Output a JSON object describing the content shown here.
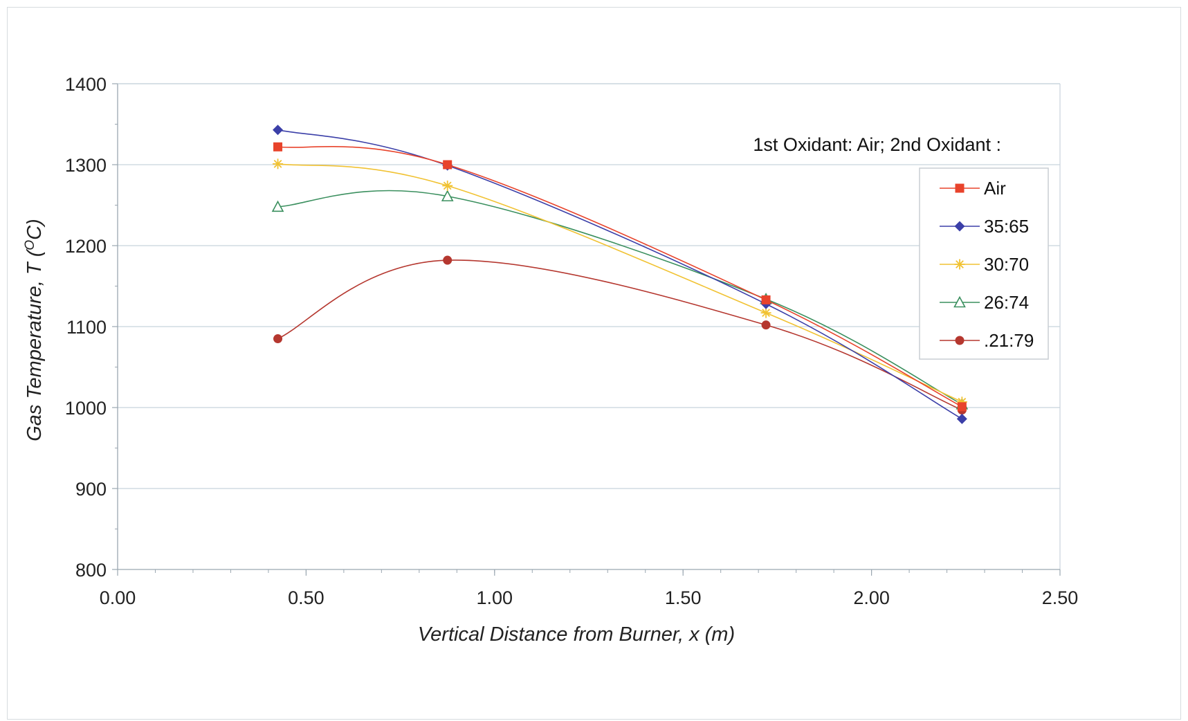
{
  "chart_data": {
    "type": "line",
    "xlabel": "Vertical Distance from Burner, x (m)",
    "ylabel_prefix": "Gas Temperature, ",
    "ylabel_var": "T",
    "ylabel_unit_open": " (",
    "ylabel_sup": "O",
    "ylabel_unit_close": "C)",
    "annotation": "1st Oxidant: Air;  2nd Oxidant :",
    "xlim": [
      0,
      2.5
    ],
    "ylim": [
      800,
      1400
    ],
    "x_ticks": [
      "0.00",
      "0.50",
      "1.00",
      "1.50",
      "2.00",
      "2.50"
    ],
    "y_ticks": [
      "800",
      "900",
      "1000",
      "1100",
      "1200",
      "1300",
      "1400"
    ],
    "grid": "horizontal",
    "legend_position": "right",
    "x": [
      0.425,
      0.875,
      1.72,
      2.24
    ],
    "series": [
      {
        "name": "Air",
        "values": [
          1322,
          1300,
          1133,
          1001
        ],
        "color": "#e8432b",
        "marker": "square"
      },
      {
        "name": "35:65",
        "values": [
          1343,
          1299,
          1128,
          986
        ],
        "color": "#3b3fa8",
        "marker": "diamond"
      },
      {
        "name": "30:70",
        "values": [
          1301,
          1274,
          1117,
          1007
        ],
        "color": "#f1c232",
        "marker": "asterisk"
      },
      {
        "name": "26:74",
        "values": [
          1248,
          1261,
          1134,
          1004
        ],
        "color": "#3a8f5e",
        "marker": "triangle"
      },
      {
        "name": ".21:79",
        "values": [
          1085,
          1182,
          1102,
          997
        ],
        "color": "#b5372f",
        "marker": "circle"
      }
    ]
  }
}
